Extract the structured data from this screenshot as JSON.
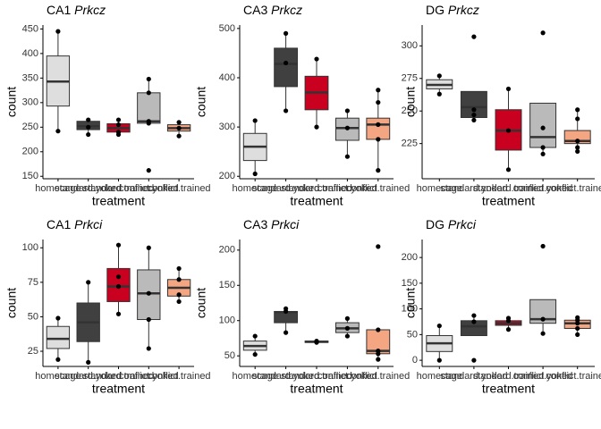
{
  "chart_data": [
    {
      "type": "box",
      "title": "CA1",
      "title_italic": "Prkcz",
      "x_label": "treatment",
      "y_label": "count",
      "categories": [
        "homecage",
        "standard.yoked",
        "standard.trained",
        "conflict.yoked",
        "conflict.trained"
      ],
      "colors": [
        "#dedede",
        "#404040",
        "#ca0020",
        "#bababa",
        "#f4a582"
      ],
      "ylim": [
        145,
        458
      ],
      "yticks": [
        150,
        200,
        250,
        300,
        350,
        400,
        450
      ],
      "boxes": [
        {
          "low": 242,
          "q1": 293,
          "median": 343,
          "q3": 395,
          "high": 445,
          "points": [
            445,
            242
          ]
        },
        {
          "low": 235,
          "q1": 245,
          "median": 252,
          "q3": 262,
          "high": 265,
          "points": [
            265,
            250,
            235
          ]
        },
        {
          "low": 235,
          "q1": 240,
          "median": 248,
          "q3": 257,
          "high": 265,
          "points": [
            265,
            255,
            240,
            235
          ]
        },
        {
          "low": 258,
          "q1": 258,
          "median": 262,
          "q3": 320,
          "high": 348,
          "points": [
            348,
            320,
            262,
            258,
            162
          ]
        },
        {
          "low": 232,
          "q1": 242,
          "median": 248,
          "q3": 255,
          "high": 260,
          "points": [
            260,
            248,
            232
          ]
        }
      ]
    },
    {
      "type": "box",
      "title": "CA3",
      "title_italic": "Prkcz",
      "x_label": "treatment",
      "y_label": "count",
      "categories": [
        "homecage",
        "standard.yoked",
        "standard.trained",
        "conflict.yoked",
        "conflict.trained"
      ],
      "colors": [
        "#dedede",
        "#404040",
        "#ca0020",
        "#bababa",
        "#f4a582"
      ],
      "ylim": [
        195,
        507
      ],
      "yticks": [
        200,
        300,
        400,
        500
      ],
      "boxes": [
        {
          "low": 205,
          "q1": 232,
          "median": 260,
          "q3": 287,
          "high": 313,
          "points": [
            313,
            205
          ]
        },
        {
          "low": 333,
          "q1": 382,
          "median": 428,
          "q3": 460,
          "high": 490,
          "points": [
            490,
            430,
            333
          ]
        },
        {
          "low": 300,
          "q1": 335,
          "median": 370,
          "q3": 403,
          "high": 438,
          "points": [
            438,
            300
          ]
        },
        {
          "low": 240,
          "q1": 273,
          "median": 298,
          "q3": 318,
          "high": 333,
          "points": [
            333,
            298,
            240
          ]
        },
        {
          "low": 212,
          "q1": 275,
          "median": 305,
          "q3": 318,
          "high": 375,
          "points": [
            375,
            350,
            305,
            275,
            212
          ]
        }
      ]
    },
    {
      "type": "box",
      "title": "DG",
      "title_italic": "Prkcz",
      "x_label": "treatment",
      "y_label": "count",
      "categories": [
        "homecage",
        "standard.yoked",
        "standard.trained",
        "conflict.yoked",
        "conflict.trained"
      ],
      "colors": [
        "#dedede",
        "#404040",
        "#ca0020",
        "#bababa",
        "#f4a582"
      ],
      "ylim": [
        198,
        316
      ],
      "yticks": [
        225,
        250,
        275,
        300
      ],
      "boxes": [
        {
          "low": 263,
          "q1": 267,
          "median": 270,
          "q3": 274,
          "high": 277,
          "points": [
            277,
            263
          ]
        },
        {
          "low": 243,
          "q1": 245,
          "median": 253,
          "q3": 265,
          "high": 265,
          "points": [
            307,
            251,
            247,
            243
          ]
        },
        {
          "low": 205,
          "q1": 220,
          "median": 235,
          "q3": 251,
          "high": 267,
          "points": [
            267,
            235,
            205
          ]
        },
        {
          "low": 217,
          "q1": 222,
          "median": 230,
          "q3": 256,
          "high": 256,
          "points": [
            310,
            237,
            222,
            217
          ]
        },
        {
          "low": 219,
          "q1": 225,
          "median": 227,
          "q3": 235,
          "high": 251,
          "points": [
            251,
            244,
            227,
            222,
            219
          ]
        }
      ]
    },
    {
      "type": "box",
      "title": "CA1",
      "title_italic": "Prkci",
      "x_label": "treatment",
      "y_label": "count",
      "categories": [
        "homecage",
        "standard.yoked",
        "standard.trained",
        "conflict.yoked",
        "conflict.trained"
      ],
      "colors": [
        "#dedede",
        "#404040",
        "#ca0020",
        "#bababa",
        "#f4a582"
      ],
      "ylim": [
        14,
        106
      ],
      "yticks": [
        25,
        50,
        75,
        100
      ],
      "boxes": [
        {
          "low": 19,
          "q1": 27,
          "median": 34,
          "q3": 43,
          "high": 49,
          "points": [
            49,
            19
          ]
        },
        {
          "low": 17,
          "q1": 32,
          "median": 46,
          "q3": 60,
          "high": 75,
          "points": [
            75,
            17
          ]
        },
        {
          "low": 52,
          "q1": 61,
          "median": 72,
          "q3": 85,
          "high": 102,
          "points": [
            102,
            79,
            72,
            52
          ]
        },
        {
          "low": 27,
          "q1": 48,
          "median": 67,
          "q3": 84,
          "high": 100,
          "points": [
            100,
            67,
            48,
            27
          ]
        },
        {
          "low": 61,
          "q1": 65,
          "median": 71,
          "q3": 77,
          "high": 85,
          "points": [
            85,
            77,
            66,
            61
          ]
        }
      ]
    },
    {
      "type": "box",
      "title": "CA3",
      "title_italic": "Prkci",
      "x_label": "treatment",
      "y_label": "count",
      "categories": [
        "homecage",
        "standard.yoked",
        "standard.trained",
        "conflict.yoked",
        "conflict.trained"
      ],
      "colors": [
        "#dedede",
        "#404040",
        "#ca0020",
        "#bababa",
        "#f4a582"
      ],
      "ylim": [
        35,
        215
      ],
      "yticks": [
        50,
        100,
        150,
        200
      ],
      "boxes": [
        {
          "low": 52,
          "q1": 58,
          "median": 64,
          "q3": 71,
          "high": 78,
          "points": [
            78,
            52
          ]
        },
        {
          "low": 83,
          "q1": 97,
          "median": 112,
          "q3": 113,
          "high": 117,
          "points": [
            117,
            113,
            83
          ]
        },
        {
          "low": 68,
          "q1": 69,
          "median": 70,
          "q3": 71,
          "high": 72,
          "points": [
            71,
            69
          ]
        },
        {
          "low": 78,
          "q1": 83,
          "median": 89,
          "q3": 97,
          "high": 103,
          "points": [
            103,
            89,
            78
          ]
        },
        {
          "low": 45,
          "q1": 53,
          "median": 57,
          "q3": 87,
          "high": 87,
          "points": [
            205,
            87,
            57,
            53,
            45
          ]
        }
      ]
    },
    {
      "type": "box",
      "title": "DG",
      "title_italic": "Prkci",
      "x_label": "treatment",
      "y_label": "count",
      "categories": [
        "homecage",
        "standard.yoked",
        "standard.trained",
        "conflict.yoked",
        "conflict.trained"
      ],
      "colors": [
        "#dedede",
        "#404040",
        "#ca0020",
        "#bababa",
        "#f4a582"
      ],
      "ylim": [
        -12,
        235
      ],
      "yticks": [
        0,
        50,
        100,
        150,
        200
      ],
      "boxes": [
        {
          "low": 0,
          "q1": 17,
          "median": 33,
          "q3": 48,
          "high": 67,
          "points": [
            67,
            0
          ]
        },
        {
          "low": 48,
          "q1": 48,
          "median": 66,
          "q3": 77,
          "high": 87,
          "points": [
            87,
            75,
            0
          ]
        },
        {
          "low": 60,
          "q1": 68,
          "median": 72,
          "q3": 77,
          "high": 82,
          "points": [
            82,
            77,
            60
          ]
        },
        {
          "low": 52,
          "q1": 72,
          "median": 80,
          "q3": 118,
          "high": 118,
          "points": [
            222,
            80,
            52
          ]
        },
        {
          "low": 50,
          "q1": 62,
          "median": 72,
          "q3": 78,
          "high": 83,
          "points": [
            83,
            78,
            72,
            62,
            50
          ]
        }
      ]
    }
  ]
}
